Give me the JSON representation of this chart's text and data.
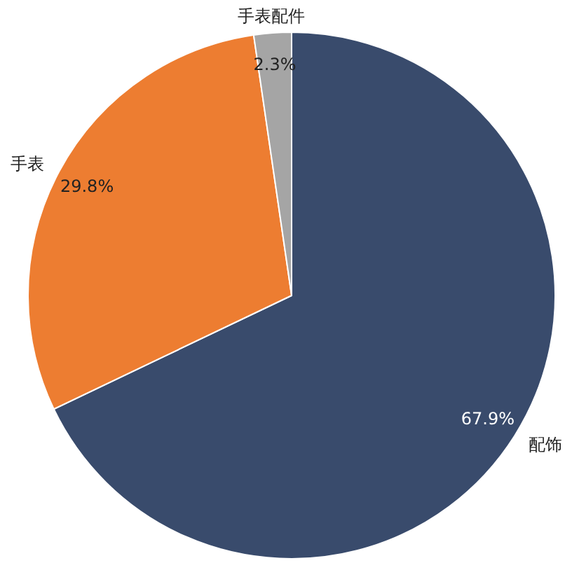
{
  "chart_data": {
    "type": "pie",
    "categories": [
      "配饰",
      "手表",
      "手表配件"
    ],
    "values": [
      67.9,
      29.8,
      2.3
    ],
    "colors": [
      "#394b6c",
      "#ed7d31",
      "#a5a5a5"
    ],
    "value_labels": [
      "67.9%",
      "29.8%",
      "2.3%"
    ]
  }
}
